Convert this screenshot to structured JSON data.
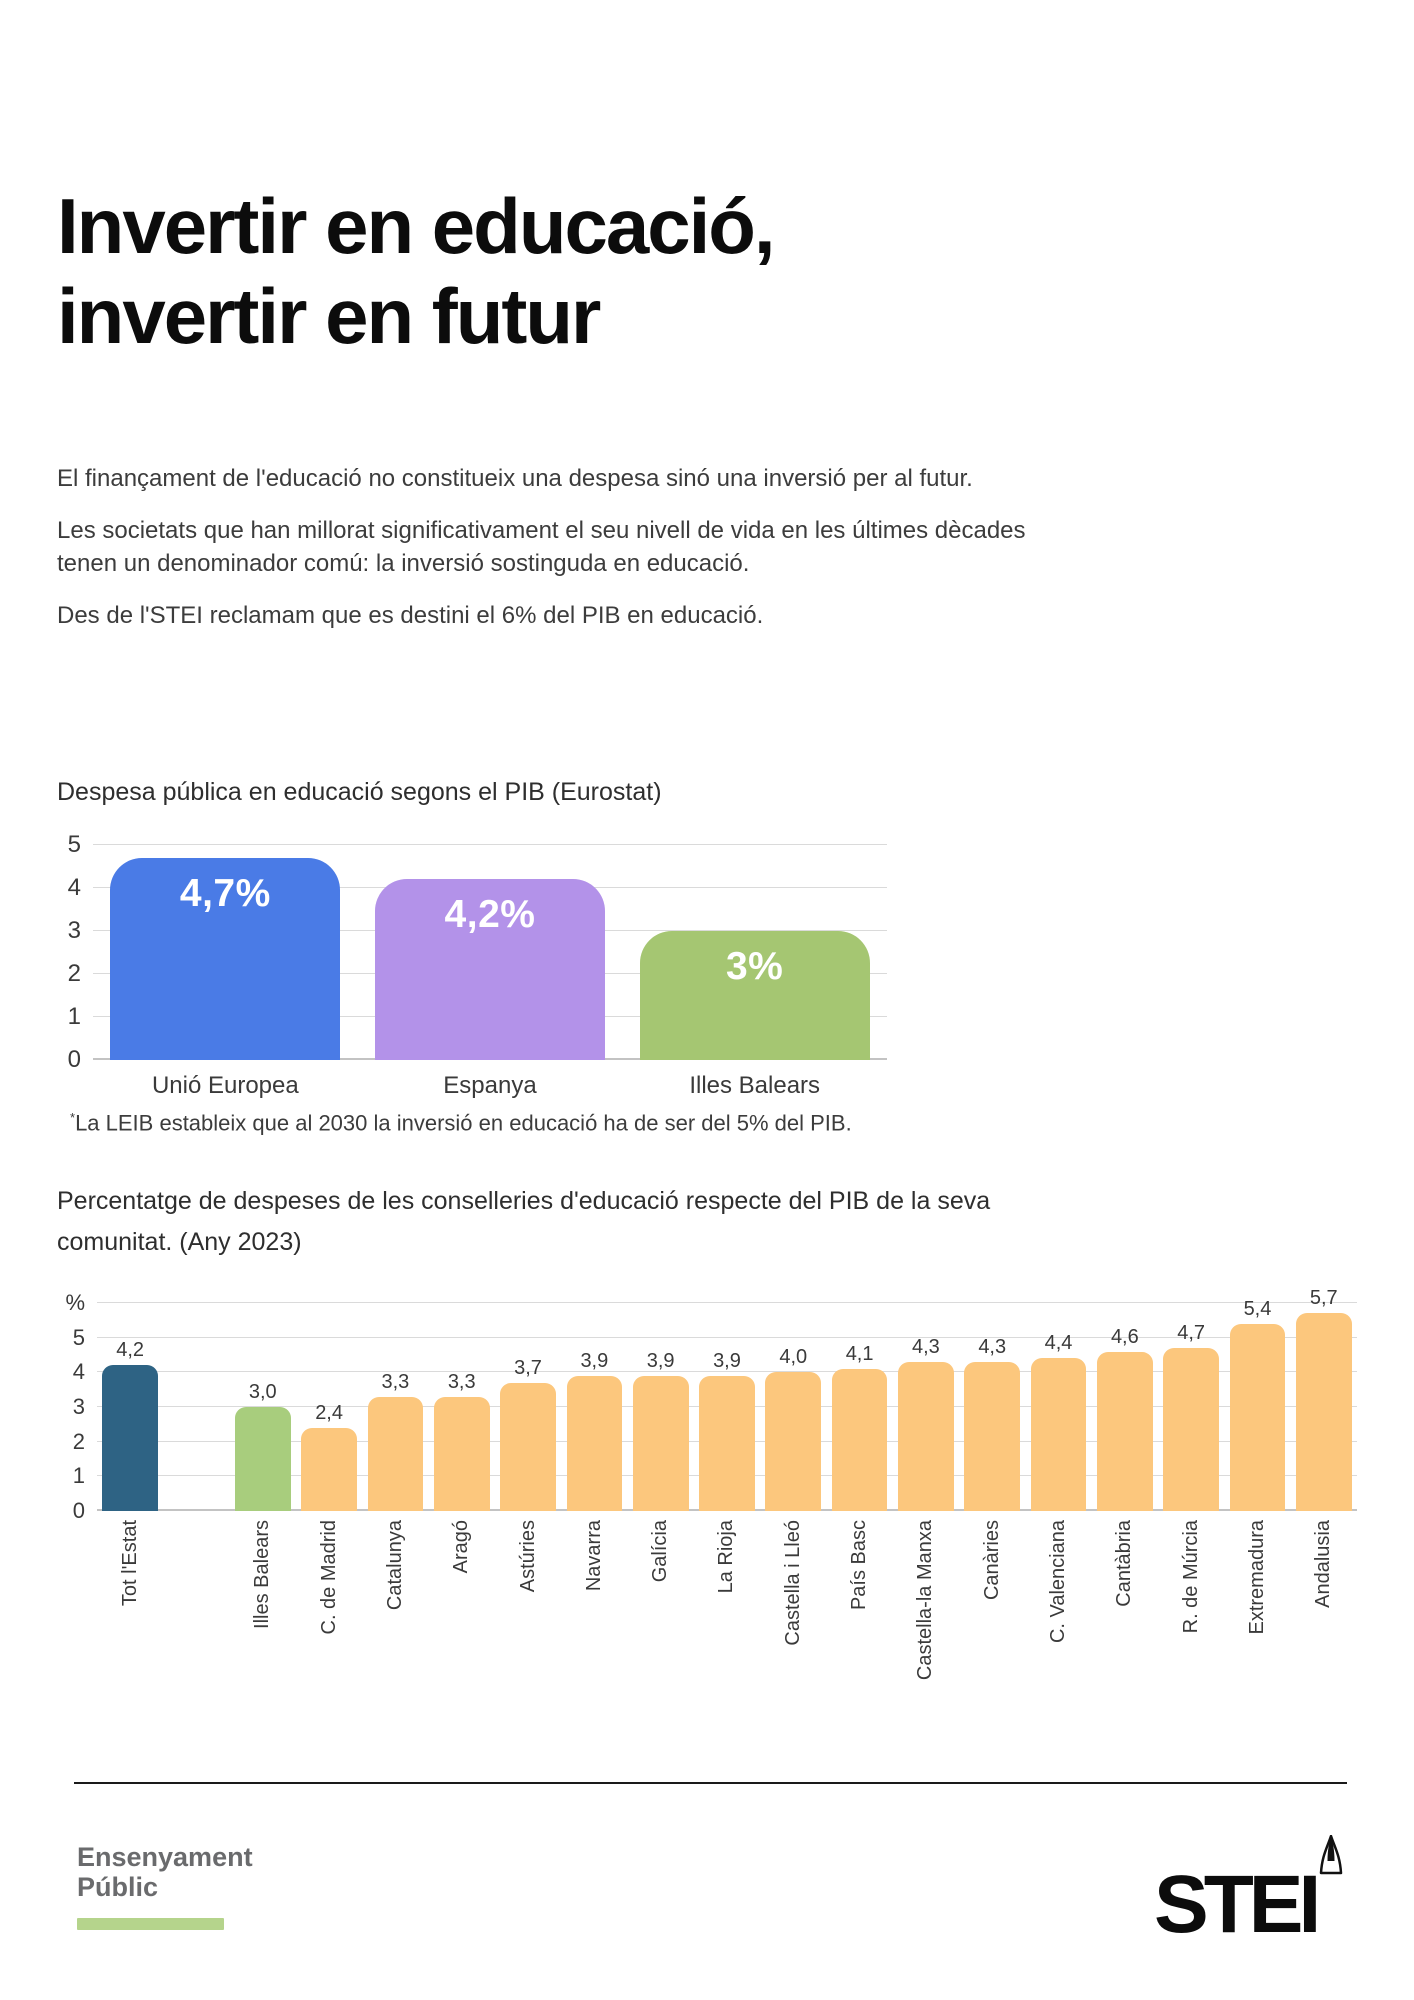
{
  "title": {
    "line1": "Invertir en educació,",
    "line2": "invertir en futur"
  },
  "intro": {
    "p1": "El finançament de l'educació no constitueix una despesa sinó una inversió per al futur.",
    "p2_line1": "Les societats que han millorat significativament el seu nivell de vida en les últimes dècades",
    "p2_line2": "tenen un denominador comú: la inversió sostinguda en educació.",
    "p3": "Des de l'STEI reclamam que es destini el 6% del PIB en educació."
  },
  "chart1": {
    "title": "Despesa pública en educació segons el PIB (Eurostat)"
  },
  "footnote": {
    "marker": "*",
    "text": "La LEIB estableix que al 2030 la inversió en educació ha de ser del 5% del PIB."
  },
  "chart2": {
    "title_line1": "Percentatge de despeses de les conselleries d'educació respecte del PIB de la seva",
    "title_line2": "comunitat. (Any 2023)"
  },
  "footer": {
    "org_line1": "Ensenyament",
    "org_line2": "Públic",
    "logo_text": "STEI"
  },
  "colors": {
    "chart1_eu_blue": "#4a7be6",
    "chart1_spain_purple": "#b392e9",
    "chart1_balears_green": "#a5c672",
    "chart2_state_teal": "#2e6384",
    "chart2_balears_green": "#a8cd7d",
    "chart2_default_orange": "#fcc77d",
    "gridline": "#dadada",
    "footer_gray": "#6a6b6d",
    "footer_green_bar": "#b5d48c"
  },
  "chart_data": [
    {
      "type": "bar",
      "title": "Despesa pública en educació segons el PIB (Eurostat)",
      "categories": [
        "Unió Europea",
        "Espanya",
        "Illes Balears"
      ],
      "values": [
        4.7,
        4.2,
        3
      ],
      "value_labels": [
        "4,7%",
        "4,2%",
        "3%"
      ],
      "bar_colors": {
        "0": "#4a7be6",
        "1": "#b392e9",
        "2": "#a5c672"
      },
      "default_bar_color": "#fcc77d",
      "ylim": [
        0,
        5
      ],
      "ytick_labels": [
        "0",
        "1",
        "2",
        "3",
        "4",
        "5"
      ],
      "grid": true,
      "legend": "none",
      "value_label_position": "inside-top",
      "value_label_color": "#ffffff"
    },
    {
      "type": "bar",
      "title": "Percentatge de despeses de les conselleries d'educació respecte del PIB de la seva comunitat. (Any 2023)",
      "categories": [
        "Tot l'Estat",
        "Illes Balears",
        "C. de Madrid",
        "Catalunya",
        "Aragó",
        "Astúries",
        "Navarra",
        "Galícia",
        "La Rioja",
        "Castella i Lleó",
        "País Basc",
        "Castella-la Manxa",
        "Canàries",
        "C. Valenciana",
        "Cantàbria",
        "R. de Múrcia",
        "Extremadura",
        "Andalusia"
      ],
      "values": [
        4.2,
        3.0,
        2.4,
        3.3,
        3.3,
        3.7,
        3.9,
        3.9,
        3.9,
        4.0,
        4.1,
        4.3,
        4.3,
        4.4,
        4.6,
        4.7,
        5.4,
        5.7
      ],
      "value_labels": [
        "4,2",
        "3,0",
        "2,4",
        "3,3",
        "3,3",
        "3,7",
        "3,9",
        "3,9",
        "3,9",
        "4,0",
        "4,1",
        "4,3",
        "4,3",
        "4,4",
        "4,6",
        "4,7",
        "5,4",
        "5,7"
      ],
      "bar_colors": {
        "0": "#2e6384",
        "1": "#a8cd7d"
      },
      "default_bar_color": "#fcc77d",
      "ylim": [
        0,
        6
      ],
      "ytick_labels": [
        "0",
        "1",
        "2",
        "3",
        "4",
        "5",
        "%"
      ],
      "grid": true,
      "legend": "none",
      "gap_after_index": 0,
      "value_label_position": "above",
      "value_label_color": "#3a3a3a",
      "xlabel_rotation": 90
    }
  ]
}
